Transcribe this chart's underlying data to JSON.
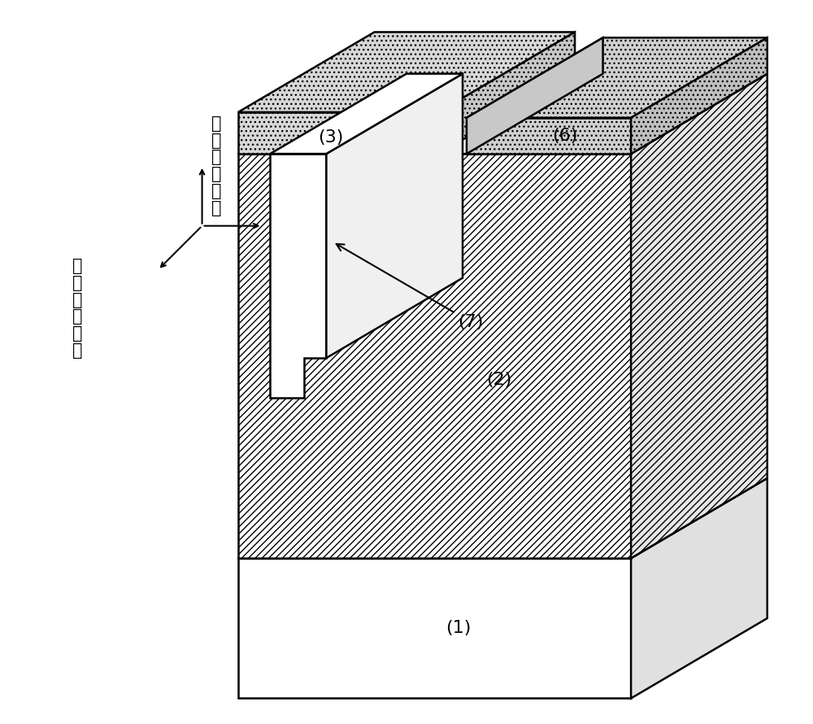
{
  "bg_color": "#ffffff",
  "label_1": "(1)",
  "label_2": "(2)",
  "label_3": "(3)",
  "label_6": "(6)",
  "label_7": "(7)",
  "font_size_labels": 16,
  "font_size_axis": 15,
  "axis_text_up": "沟\n道\n宽\n度\n方\n向",
  "axis_text_diag": "沟\n道\n长\n度\n方\n向"
}
